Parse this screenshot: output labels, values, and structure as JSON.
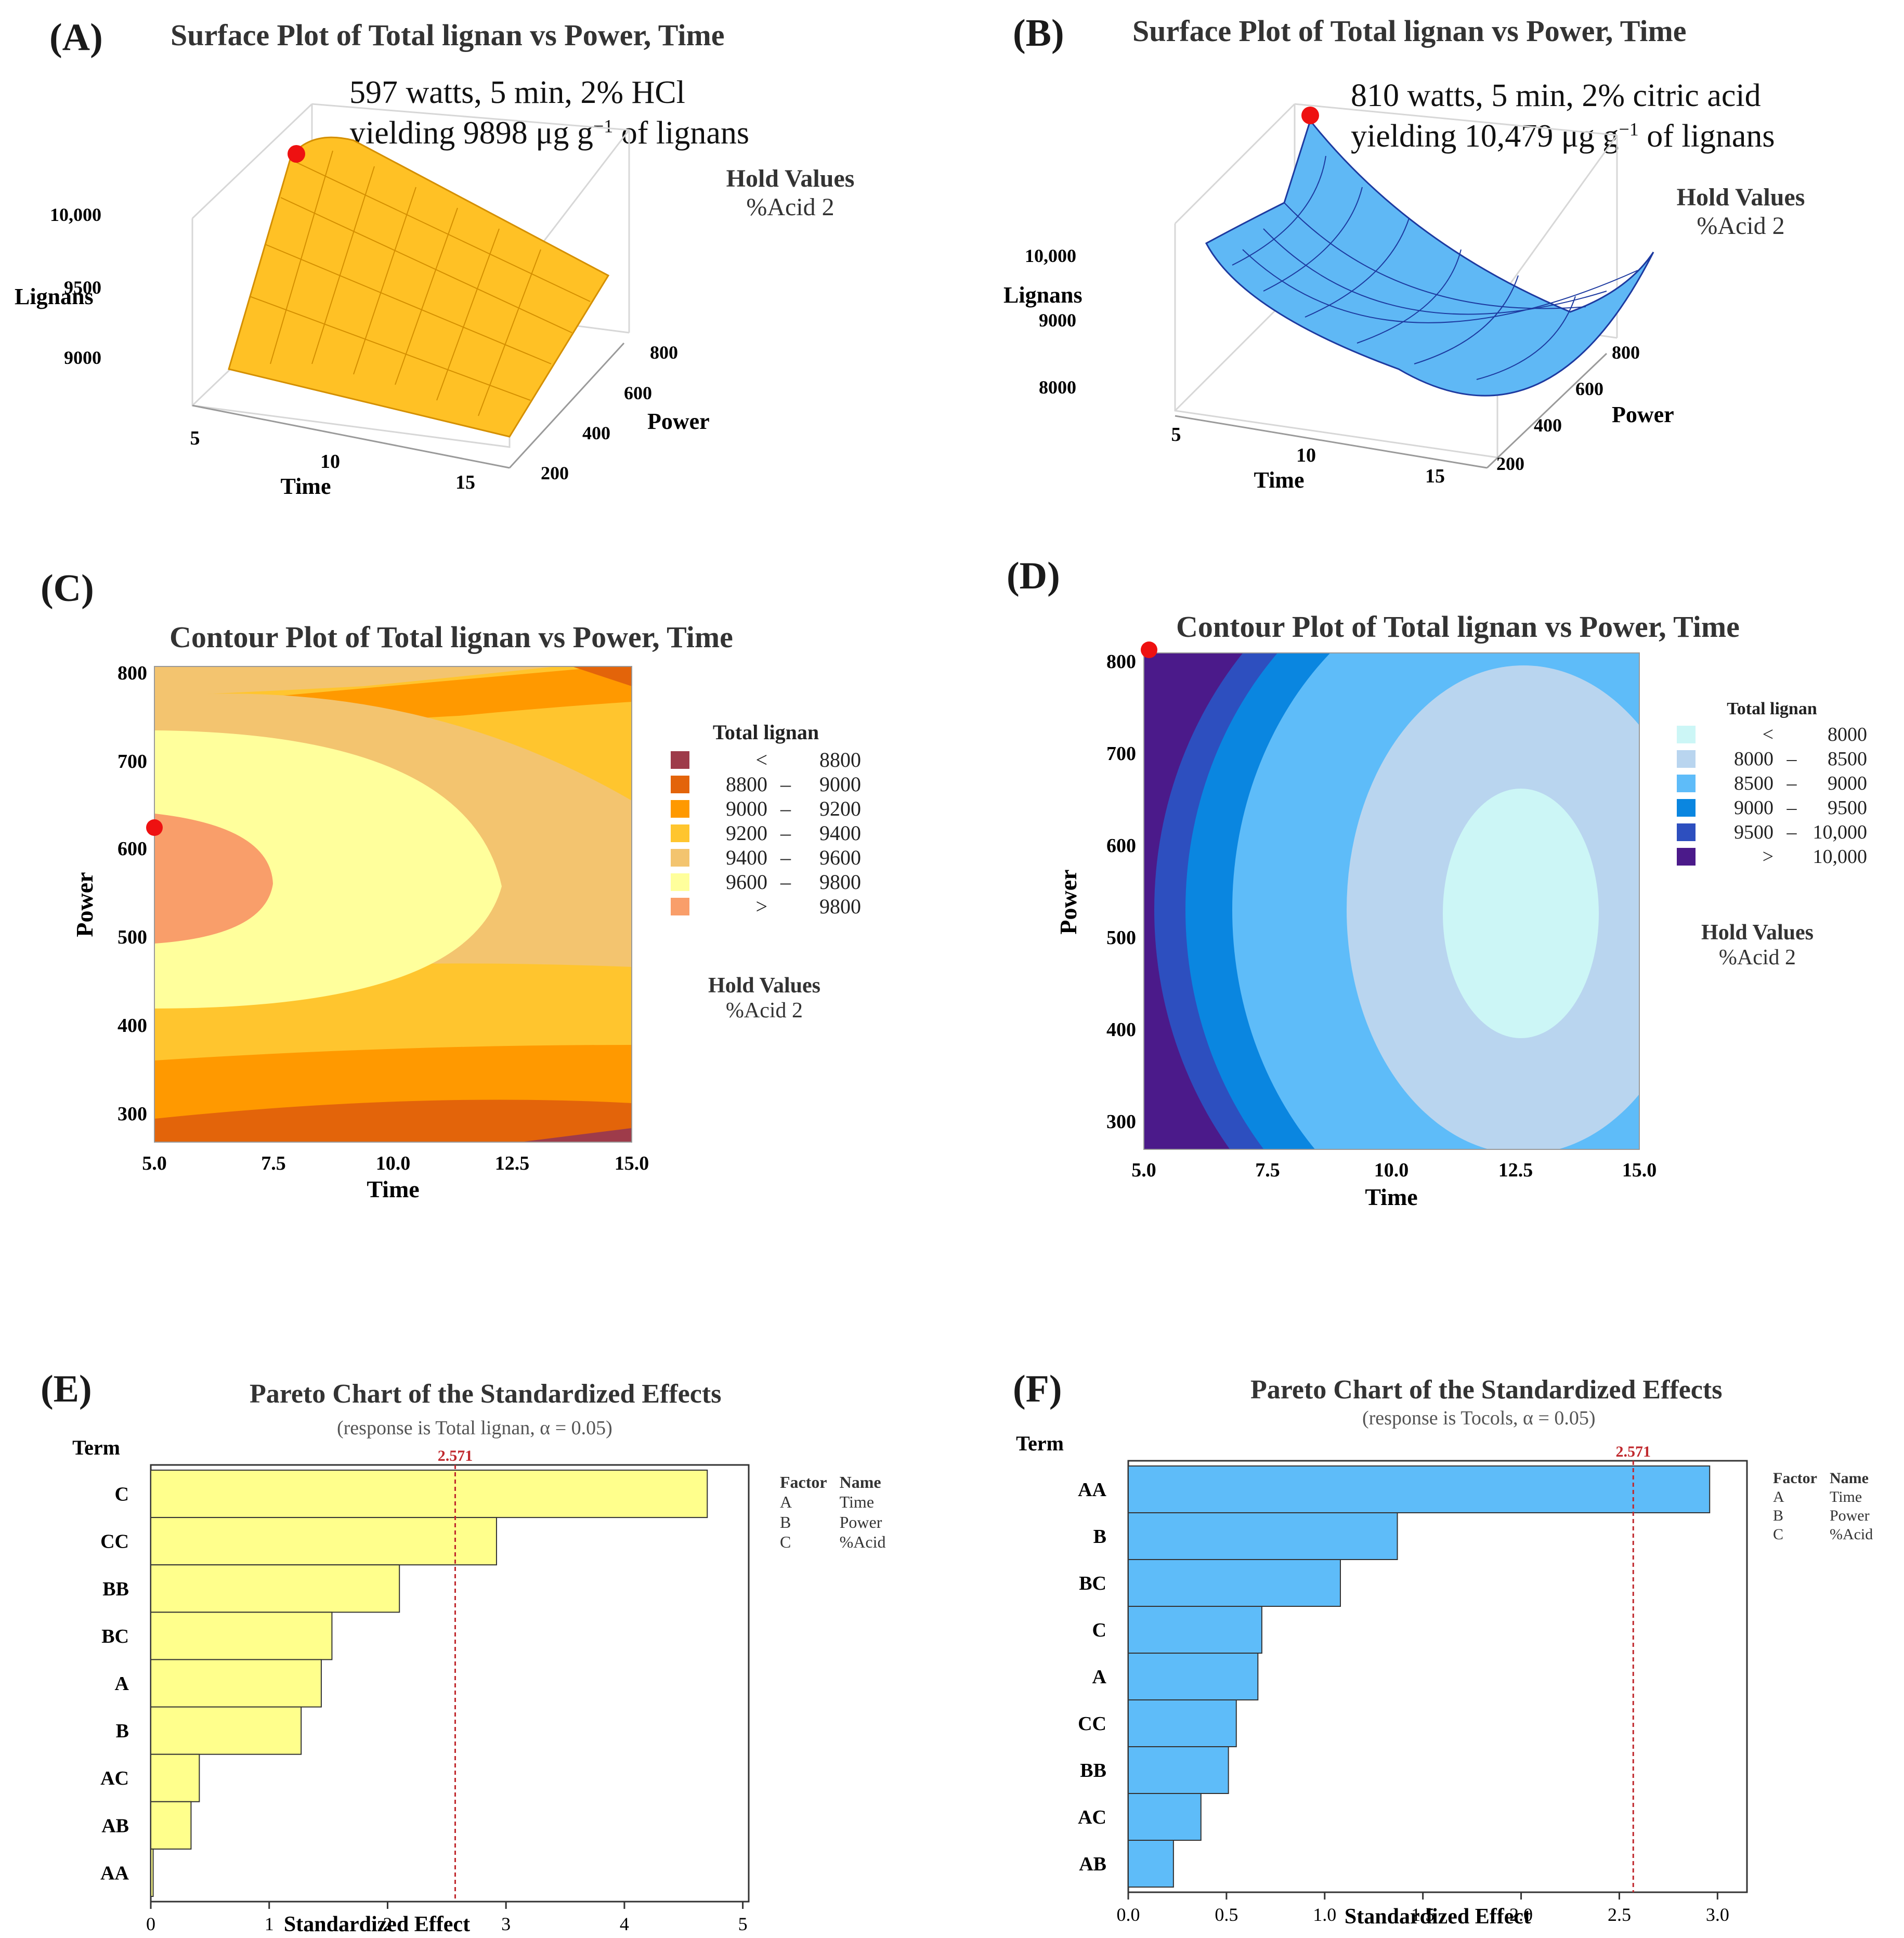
{
  "panels": {
    "A": {
      "label": "(A)",
      "title": "Surface Plot of Total lignan vs Power, Time",
      "note_line1": "597 watts, 5 min, 2% HCl",
      "note_line2": "yielding 9898 μg g",
      "note_sup": "−1",
      "note_tail": " of lignans",
      "hold_title": "Hold Values",
      "hold_value": "%Acid  2",
      "z_label": "Lignans",
      "z_ticks": [
        "10,000",
        "9500",
        "9000"
      ],
      "x_label": "Time",
      "x_ticks": [
        "5",
        "10",
        "15"
      ],
      "y_label": "Power",
      "y_ticks": [
        "800",
        "600",
        "400",
        "200"
      ],
      "color": "#ffc125"
    },
    "B": {
      "label": "(B)",
      "title": "Surface Plot of Total lignan vs Power, Time",
      "note_line1": "810 watts, 5 min, 2% citric acid",
      "note_line2": "yielding 10,479 μg g",
      "note_sup": "−1",
      "note_tail": " of lignans",
      "hold_title": "Hold Values",
      "hold_value": "%Acid  2",
      "z_label": "Lignans",
      "z_ticks": [
        "10,000",
        "9000",
        "8000"
      ],
      "x_label": "Time",
      "x_ticks": [
        "5",
        "10",
        "15"
      ],
      "y_label": "Power",
      "y_ticks": [
        "800",
        "600",
        "400",
        "200"
      ],
      "color": "#5fb8f5"
    },
    "C": {
      "label": "(C)",
      "title": "Contour Plot of Total lignan vs Power, Time",
      "hold_title": "Hold Values",
      "hold_value": "%Acid  2",
      "legend_title": "Total lignan",
      "legend": [
        {
          "lo": "<",
          "dash": "",
          "hi": "8800",
          "color": "#9e3b4a"
        },
        {
          "lo": "8800",
          "dash": "–",
          "hi": "9000",
          "color": "#e3640a"
        },
        {
          "lo": "9000",
          "dash": "–",
          "hi": "9200",
          "color": "#ff9900"
        },
        {
          "lo": "9200",
          "dash": "–",
          "hi": "9400",
          "color": "#ffc52e"
        },
        {
          "lo": "9400",
          "dash": "–",
          "hi": "9600",
          "color": "#f3c46f"
        },
        {
          "lo": "9600",
          "dash": "–",
          "hi": "9800",
          "color": "#ffff9c"
        },
        {
          "lo": ">",
          "dash": "",
          "hi": "9800",
          "color": "#f99e6a"
        }
      ]
    },
    "D": {
      "label": "(D)",
      "title": "Contour Plot of Total lignan vs Power, Time",
      "hold_title": "Hold Values",
      "hold_value": "%Acid  2",
      "legend_title": "Total lignan",
      "legend": [
        {
          "lo": "<",
          "dash": "",
          "hi": "8000",
          "color": "#ccf6f6"
        },
        {
          "lo": "8000",
          "dash": "–",
          "hi": "8500",
          "color": "#b9d5ef"
        },
        {
          "lo": "8500",
          "dash": "–",
          "hi": "9000",
          "color": "#5ebcf9"
        },
        {
          "lo": "9000",
          "dash": "–",
          "hi": "9500",
          "color": "#0a86e0"
        },
        {
          "lo": "9500",
          "dash": "–",
          "hi": "10,000",
          "color": "#2d4fbf"
        },
        {
          "lo": ">",
          "dash": "",
          "hi": "10,000",
          "color": "#4b1a8a"
        }
      ]
    },
    "E": {
      "label": "(E)",
      "title": "Pareto Chart of the Standardized Effects",
      "subtitle": "(response is Total lignan, α = 0.05)",
      "factor_header": "Factor",
      "name_header": "Name",
      "factors": [
        [
          "A",
          "Time"
        ],
        [
          "B",
          "Power"
        ],
        [
          "C",
          "%Acid"
        ]
      ]
    },
    "F": {
      "label": "(F)",
      "title": "Pareto Chart of the Standardized Effects",
      "subtitle": "(response is Tocols, α = 0.05)",
      "factor_header": "Factor",
      "name_header": "Name",
      "factors": [
        [
          "A",
          "Time"
        ],
        [
          "B",
          "Power"
        ],
        [
          "C",
          "%Acid"
        ]
      ]
    }
  },
  "chart_data": [
    {
      "id": "A",
      "type": "surface",
      "title": "Surface Plot of Total lignan vs Power, Time",
      "xlabel": "Time",
      "ylabel": "Power",
      "zlabel": "Lignans",
      "xlim": [
        5,
        15
      ],
      "ylim": [
        200,
        810
      ],
      "zlim": [
        8800,
        10100
      ],
      "optimum": {
        "time": 5,
        "power": 597,
        "value": 9898
      }
    },
    {
      "id": "B",
      "type": "surface",
      "title": "Surface Plot of Total lignan vs Power, Time",
      "xlabel": "Time",
      "ylabel": "Power",
      "zlabel": "Lignans",
      "xlim": [
        5,
        15
      ],
      "ylim": [
        200,
        810
      ],
      "zlim": [
        7800,
        10500
      ],
      "optimum": {
        "time": 5,
        "power": 810,
        "value": 10479
      }
    },
    {
      "id": "C",
      "type": "contour",
      "title": "Contour Plot of Total lignan vs Power, Time",
      "xlabel": "Time",
      "ylabel": "Power",
      "xlim": [
        5,
        15
      ],
      "ylim": [
        270,
        810
      ],
      "xticks": [
        "5.0",
        "7.5",
        "10.0",
        "12.5",
        "15.0"
      ],
      "yticks": [
        "300",
        "400",
        "500",
        "600",
        "700",
        "800"
      ],
      "optimum": {
        "time": 5,
        "power": 623
      }
    },
    {
      "id": "D",
      "type": "contour",
      "title": "Contour Plot of Total lignan vs Power, Time",
      "xlabel": "Time",
      "ylabel": "Power",
      "xlim": [
        5,
        15
      ],
      "ylim": [
        270,
        810
      ],
      "xticks": [
        "5.0",
        "7.5",
        "10.0",
        "12.5",
        "15.0"
      ],
      "yticks": [
        "300",
        "400",
        "500",
        "600",
        "700",
        "800"
      ],
      "optimum": {
        "time": 5,
        "power": 812
      }
    },
    {
      "id": "E",
      "type": "bar",
      "orientation": "horizontal",
      "title": "Pareto Chart of the Standardized Effects",
      "subtitle": "(response is Total lignan, α = 0.05)",
      "ylabel": "Term",
      "xlabel": "Standardized Effect",
      "categories": [
        "C",
        "CC",
        "BB",
        "BC",
        "A",
        "B",
        "AC",
        "AB",
        "AA"
      ],
      "values": [
        4.7,
        2.92,
        2.1,
        1.53,
        1.44,
        1.27,
        0.41,
        0.34,
        0.02
      ],
      "reference_line": 2.571,
      "reference_label": "2.571",
      "xlim": [
        0,
        5.05
      ],
      "xticks": [
        "0",
        "1",
        "2",
        "3",
        "4",
        "5"
      ],
      "bar_color": "#ffff8c"
    },
    {
      "id": "F",
      "type": "bar",
      "orientation": "horizontal",
      "title": "Pareto Chart of the Standardized Effects",
      "subtitle": "(response is Tocols, α = 0.05)",
      "ylabel": "Term",
      "xlabel": "Standardized Effect",
      "categories": [
        "AA",
        "B",
        "BC",
        "C",
        "A",
        "CC",
        "BB",
        "AC",
        "AB"
      ],
      "values": [
        2.96,
        1.37,
        1.08,
        0.68,
        0.66,
        0.55,
        0.51,
        0.37,
        0.23
      ],
      "reference_line": 2.571,
      "reference_label": "2.571",
      "xlim": [
        0,
        3.15
      ],
      "xticks": [
        "0.0",
        "0.5",
        "1.0",
        "1.5",
        "2.0",
        "2.5",
        "3.0"
      ],
      "bar_color": "#5ebcf9"
    }
  ]
}
